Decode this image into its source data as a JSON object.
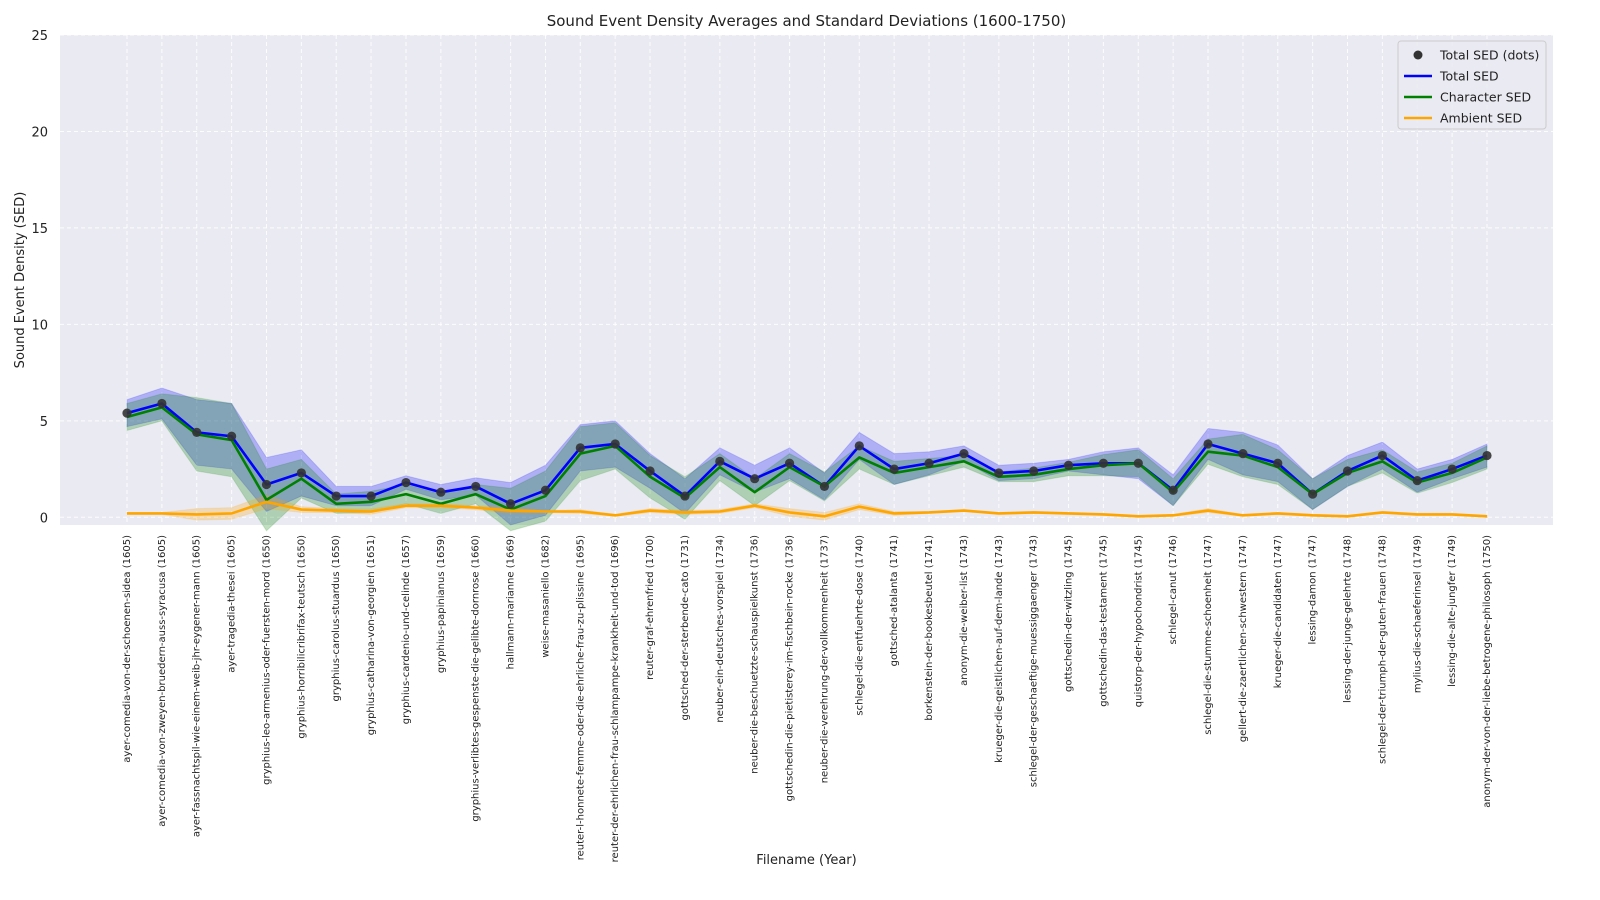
{
  "chart_data": {
    "type": "line",
    "title": "Sound Event Density Averages and Standard Deviations (1600-1750)",
    "xlabel": "Filename (Year)",
    "ylabel": "Sound Event Density (SED)",
    "ylim": [
      -0.4,
      25
    ],
    "yticks": [
      0,
      5,
      10,
      15,
      20,
      25
    ],
    "grid": true,
    "legend_position": "top-right",
    "categories": [
      "ayer-comedia-von-der-schoenen-sidea (1605)",
      "ayer-comedia-von-zweyen-bruedern-auss-syracusa (1605)",
      "ayer-fassnachtspil-wie-einem-weib-jhr-eygener-mann (1605)",
      "ayer-tragedia-thesei (1605)",
      "gryphius-leo-armenius-oder-fuersten-mord (1650)",
      "gryphius-horribilicribrifax-teutsch (1650)",
      "gryphius-carolus-stuardus (1650)",
      "gryphius-catharina-von-georgien (1651)",
      "gryphius-cardenio-und-celinde (1657)",
      "gryphius-papinianus (1659)",
      "gryphius-verlibtes-gespenste-die-gelibte-dornrose (1660)",
      "hallmann-marianne (1669)",
      "weise-masaniello (1682)",
      "reuter-l-honnete-femme-oder-die-ehrliche-frau-zu-plissine (1695)",
      "reuter-der-ehrlichen-frau-schlampampe-krankheit-und-tod (1696)",
      "reuter-graf-ehrenfried (1700)",
      "gottsched-der-sterbende-cato (1731)",
      "neuber-ein-deutsches-vorspiel (1734)",
      "neuber-die-beschuetzte-schauspielkunst (1736)",
      "gottschedin-die-pietisterey-im-fischbein-rocke (1736)",
      "neuber-die-verehrung-der-vollkommenheit (1737)",
      "schlegel-die-entfuehrte-dose (1740)",
      "gottsched-atalanta (1741)",
      "borkenstein-der-bookesbeutel (1741)",
      "anonym-die-weiber-list (1743)",
      "krueger-die-geistlichen-auf-dem-lande (1743)",
      "schlegel-der-geschaeftige-muessiggaenger (1743)",
      "gottschedin-der-witzling (1745)",
      "gottschedin-das-testament (1745)",
      "quistorp-der-hypochondrist (1745)",
      "schlegel-canut (1746)",
      "schlegel-die-stumme-schoenheit (1747)",
      "gellert-die-zaertlichen-schwestern (1747)",
      "krueger-die-candidaten (1747)",
      "lessing-damon (1747)",
      "lessing-der-junge-gelehrte (1748)",
      "schlegel-der-triumph-der-guten-frauen (1748)",
      "mylius-die-schaeferinsel (1749)",
      "lessing-die-alte-jungfer (1749)",
      "anonym-der-von-der-liebe-betrogene-philosoph (1750)"
    ],
    "series": [
      {
        "name": "Total SED",
        "color": "#0000ff",
        "values": [
          5.4,
          5.9,
          4.4,
          4.2,
          1.7,
          2.3,
          1.1,
          1.1,
          1.8,
          1.3,
          1.6,
          0.7,
          1.4,
          3.6,
          3.8,
          2.4,
          1.1,
          2.9,
          2.0,
          2.8,
          1.6,
          3.7,
          2.5,
          2.8,
          3.3,
          2.3,
          2.4,
          2.7,
          2.8,
          2.8,
          1.4,
          3.8,
          3.3,
          2.8,
          1.2,
          2.4,
          3.2,
          1.9,
          2.5,
          3.2
        ],
        "std": [
          0.7,
          0.8,
          1.7,
          1.7,
          1.4,
          1.2,
          0.5,
          0.5,
          0.35,
          0.4,
          0.45,
          1.1,
          1.3,
          1.2,
          1.2,
          0.9,
          0.9,
          0.7,
          0.7,
          0.8,
          0.7,
          0.7,
          0.8,
          0.6,
          0.4,
          0.4,
          0.4,
          0.3,
          0.6,
          0.8,
          0.8,
          0.8,
          1.1,
          0.95,
          0.8,
          0.8,
          0.7,
          0.6,
          0.5,
          0.6
        ]
      },
      {
        "name": "Character SED",
        "color": "#008000",
        "values": [
          5.2,
          5.7,
          4.3,
          4.0,
          0.9,
          2.0,
          0.7,
          0.8,
          1.2,
          0.7,
          1.2,
          0.4,
          1.1,
          3.3,
          3.7,
          2.1,
          1.0,
          2.6,
          1.3,
          2.6,
          1.6,
          3.1,
          2.3,
          2.6,
          2.9,
          2.1,
          2.2,
          2.5,
          2.7,
          2.8,
          1.3,
          3.4,
          3.2,
          2.6,
          1.2,
          2.3,
          2.9,
          1.8,
          2.3,
          3.1
        ],
        "std": [
          0.7,
          0.7,
          1.9,
          1.9,
          1.6,
          1.0,
          0.5,
          0.55,
          0.5,
          0.5,
          0.5,
          1.1,
          1.3,
          1.4,
          1.2,
          1.1,
          1.1,
          0.7,
          0.7,
          0.7,
          0.75,
          0.6,
          0.6,
          0.45,
          0.3,
          0.25,
          0.35,
          0.35,
          0.55,
          0.7,
          0.7,
          0.65,
          1.1,
          0.9,
          0.8,
          0.7,
          0.6,
          0.55,
          0.5,
          0.6
        ]
      },
      {
        "name": "Ambient SED",
        "color": "#ffa500",
        "values": [
          0.2,
          0.2,
          0.15,
          0.2,
          0.8,
          0.4,
          0.35,
          0.3,
          0.6,
          0.6,
          0.5,
          0.35,
          0.3,
          0.3,
          0.1,
          0.35,
          0.25,
          0.3,
          0.6,
          0.25,
          0.05,
          0.55,
          0.2,
          0.25,
          0.35,
          0.2,
          0.25,
          0.2,
          0.15,
          0.05,
          0.1,
          0.35,
          0.1,
          0.2,
          0.1,
          0.05,
          0.25,
          0.15,
          0.15,
          0.05
        ],
        "std": [
          0.05,
          0.05,
          0.3,
          0.3,
          0.35,
          0.15,
          0.1,
          0.15,
          0.1,
          0.1,
          0.1,
          0.15,
          0.05,
          0.1,
          0.05,
          0.1,
          0.1,
          0.1,
          0.1,
          0.2,
          0.2,
          0.15,
          0.1,
          0.05,
          0.05,
          0.05,
          0.05,
          0.05,
          0.05,
          0.05,
          0.05,
          0.1,
          0.05,
          0.05,
          0.05,
          0.05,
          0.05,
          0.05,
          0.05,
          0.05
        ]
      }
    ],
    "dots_series": {
      "name": "Total SED (dots)",
      "color": "#333333",
      "source": "Total SED"
    },
    "legend": [
      "Total SED (dots)",
      "Total SED",
      "Character SED",
      "Ambient SED"
    ],
    "plot_background": "#eaeaf2"
  }
}
